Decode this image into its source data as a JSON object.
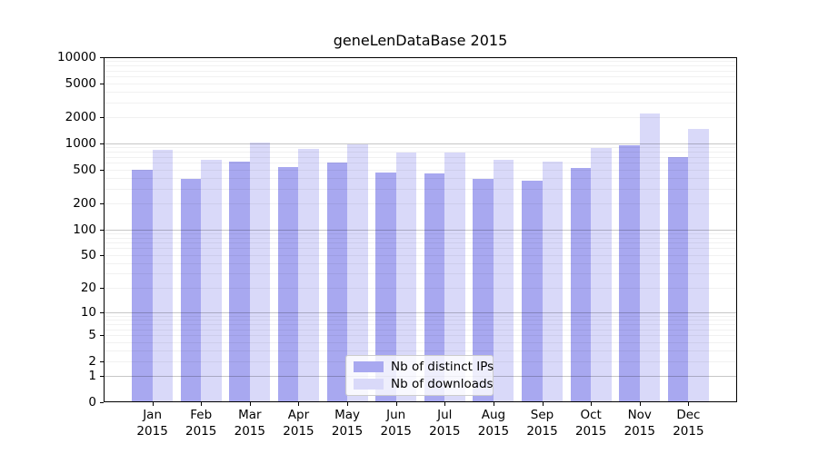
{
  "figure": {
    "title": "geneLenDataBase 2015"
  },
  "chart_data": {
    "type": "bar",
    "title": "geneLenDataBase 2015",
    "categories": [
      "Jan",
      "Feb",
      "Mar",
      "Apr",
      "May",
      "Jun",
      "Jul",
      "Aug",
      "Sep",
      "Oct",
      "Nov",
      "Dec"
    ],
    "x_year_label": "2015",
    "series": [
      {
        "name": "Nb of distinct IPs",
        "color": "#a8a8f0",
        "values": [
          500,
          390,
          620,
          530,
          600,
          460,
          450,
          390,
          370,
          520,
          960,
          700
        ]
      },
      {
        "name": "Nb of downloads",
        "color": "#d9d9f9",
        "values": [
          840,
          650,
          1020,
          870,
          970,
          790,
          780,
          640,
          610,
          890,
          2230,
          1460
        ]
      }
    ],
    "yscale": "log10(value+1)",
    "ylim": [
      0,
      10000
    ],
    "yticks": [
      0,
      1,
      2,
      5,
      10,
      20,
      50,
      100,
      200,
      500,
      1000,
      2000,
      5000,
      10000
    ],
    "grid": {
      "orientation": "horizontal",
      "major": true,
      "minor": true
    },
    "legend": {
      "position": "lower-center",
      "items": [
        "Nb of distinct IPs",
        "Nb of downloads"
      ]
    }
  },
  "colors": {
    "bar_distinct_ips": "#a8a8f0",
    "bar_downloads": "#d9d9f9",
    "grid_major": "rgba(0,0,0,0.22)",
    "grid_minor": "rgba(0,0,0,0.055)",
    "axis": "#000000"
  }
}
